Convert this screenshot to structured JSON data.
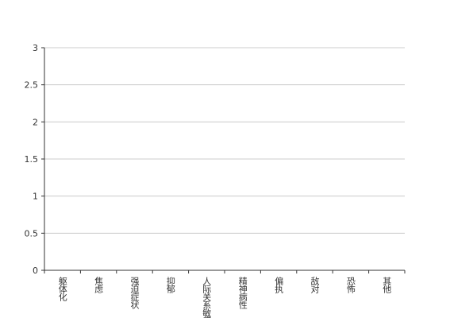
{
  "chart_data": {
    "type": "bar",
    "categories": [
      "躯体化",
      "焦虑",
      "强迫症状",
      "抑郁",
      "人际关系敏感",
      "精神病性",
      "偏执",
      "敌对",
      "恐怖",
      "其他"
    ],
    "values": [
      0,
      0,
      0,
      0,
      0,
      0,
      0,
      0,
      0,
      0
    ],
    "color": "#5b9bd5",
    "ylim": [
      0,
      3
    ],
    "yticks": [
      0,
      0.5,
      1,
      1.5,
      2,
      2.5,
      3
    ],
    "grid": true
  }
}
